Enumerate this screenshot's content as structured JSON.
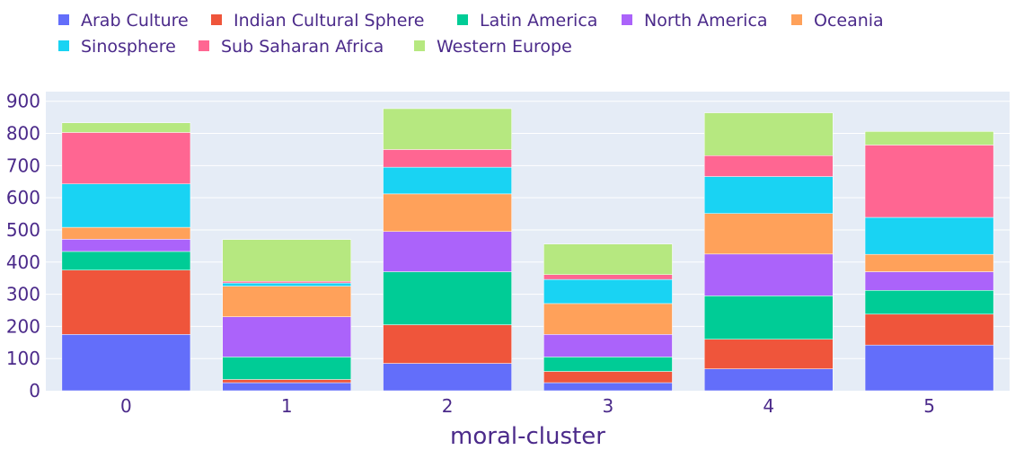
{
  "chart_data": {
    "type": "bar",
    "barmode": "stack",
    "categories": [
      "0",
      "1",
      "2",
      "3",
      "4",
      "5"
    ],
    "xlabel": "moral-cluster",
    "ylabel": "",
    "ylim": [
      0,
      930
    ],
    "yticks": [
      0,
      100,
      200,
      300,
      400,
      500,
      600,
      700,
      800,
      900
    ],
    "grid": true,
    "legend_position": "top-left",
    "series": [
      {
        "name": "Arab Culture",
        "color": "#636efa",
        "values": [
          175,
          25,
          85,
          25,
          68,
          142
        ]
      },
      {
        "name": "Indian Cultural Sphere",
        "color": "#ef553b",
        "values": [
          200,
          10,
          120,
          35,
          92,
          96
        ]
      },
      {
        "name": "Latin America",
        "color": "#00cc96",
        "values": [
          58,
          70,
          165,
          45,
          135,
          74
        ]
      },
      {
        "name": "North America",
        "color": "#ab63fa",
        "values": [
          38,
          125,
          125,
          70,
          130,
          58
        ]
      },
      {
        "name": "Oceania",
        "color": "#ffa15a",
        "values": [
          37,
          95,
          117,
          96,
          126,
          54
        ]
      },
      {
        "name": "Sinosphere",
        "color": "#19d3f3",
        "values": [
          135,
          10,
          83,
          75,
          115,
          115
        ]
      },
      {
        "name": "Sub Saharan Africa",
        "color": "#ff6692",
        "values": [
          160,
          5,
          55,
          15,
          65,
          225
        ]
      },
      {
        "name": "Western Europe",
        "color": "#b6e880",
        "values": [
          30,
          130,
          127,
          95,
          133,
          42
        ]
      }
    ]
  }
}
